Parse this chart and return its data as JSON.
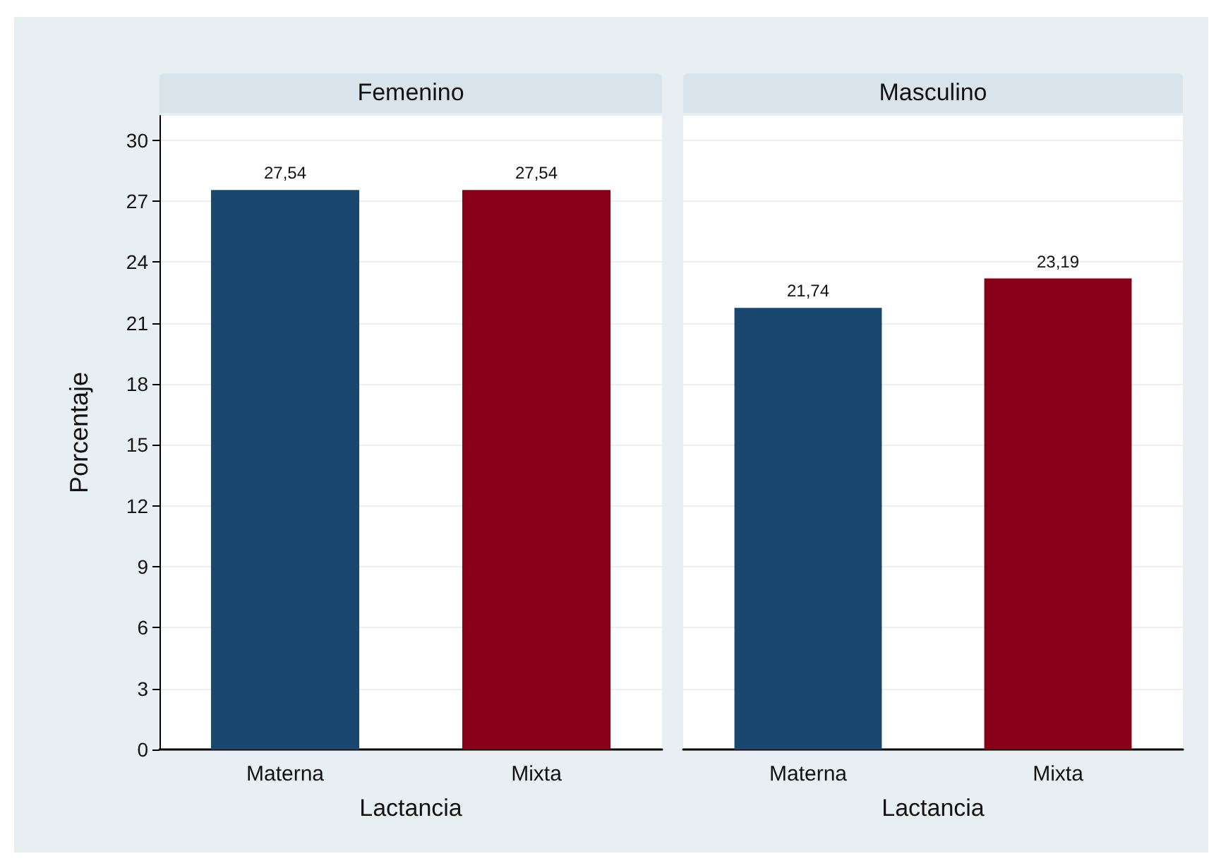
{
  "chart_data": [
    {
      "type": "bar",
      "title": "Femenino",
      "xlabel": "Lactancia",
      "ylabel": "Porcentaje",
      "categories": [
        "Materna",
        "Mixta"
      ],
      "values": [
        27.54,
        27.54
      ],
      "value_labels": [
        "27,54",
        "27,54"
      ],
      "colors": [
        "#1a476f",
        "#870017"
      ],
      "ylim": [
        0,
        31.2
      ],
      "yticks": [
        0,
        3,
        6,
        9,
        12,
        15,
        18,
        21,
        24,
        27,
        30
      ],
      "grid": "y"
    },
    {
      "type": "bar",
      "title": "Masculino",
      "xlabel": "Lactancia",
      "categories": [
        "Materna",
        "Mixta"
      ],
      "values": [
        21.74,
        23.19
      ],
      "value_labels": [
        "21,74",
        "23,19"
      ],
      "colors": [
        "#1a476f",
        "#870017"
      ],
      "ylim": [
        0,
        31.2
      ],
      "yticks": [
        0,
        3,
        6,
        9,
        12,
        15,
        18,
        21,
        24,
        27,
        30
      ],
      "grid": "y",
      "tick_labels": "x"
    }
  ]
}
